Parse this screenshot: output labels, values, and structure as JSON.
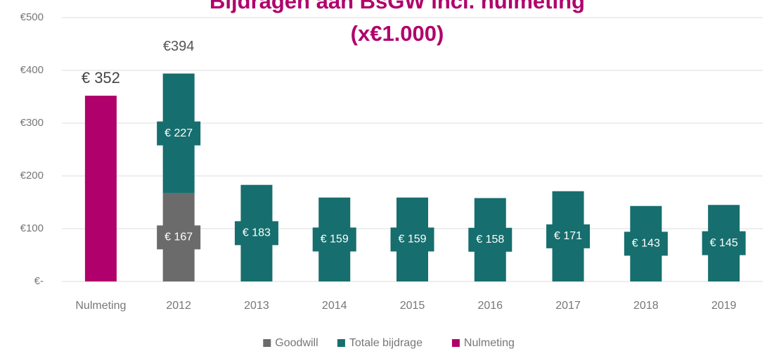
{
  "chart_data": {
    "type": "stacked_bar",
    "title": [
      "Bijdragen aan BsGW incl. nulmeting",
      "(x€1.000)"
    ],
    "categories": [
      "Nulmeting",
      "2012",
      "2013",
      "2014",
      "2015",
      "2016",
      "2017",
      "2018",
      "2019"
    ],
    "series": [
      {
        "name": "Goodwill",
        "color": "#6b6b6b",
        "values": [
          null,
          167,
          null,
          null,
          null,
          null,
          null,
          null,
          null
        ],
        "value_labels": [
          null,
          "€ 167",
          null,
          null,
          null,
          null,
          null,
          null,
          null
        ]
      },
      {
        "name": "Totale bijdrage",
        "color": "#176e6e",
        "values": [
          null,
          227,
          183,
          159,
          159,
          158,
          171,
          143,
          145
        ],
        "value_labels": [
          null,
          "€ 227",
          "€ 183",
          "€ 159",
          "€ 159",
          "€ 158",
          "€ 171",
          "€ 143",
          "€ 145"
        ]
      },
      {
        "name": "Nulmeting",
        "color": "#b0006b",
        "label_position": "above",
        "values": [
          352,
          null,
          null,
          null,
          null,
          null,
          null,
          null,
          null
        ],
        "value_labels": [
          "€ 352",
          null,
          null,
          null,
          null,
          null,
          null,
          null,
          null
        ]
      }
    ],
    "annotations": [
      {
        "label": "€394",
        "value": 394,
        "category": "2012"
      }
    ],
    "ylim": [
      0,
      500
    ],
    "yticks": [
      {
        "value": 0,
        "label": "€-"
      },
      {
        "value": 100,
        "label": "€100"
      },
      {
        "value": 200,
        "label": "€200"
      },
      {
        "value": 300,
        "label": "€300"
      },
      {
        "value": 400,
        "label": "€400"
      },
      {
        "value": 500,
        "label": "€500"
      }
    ],
    "grid": true,
    "legend": "bottom"
  }
}
